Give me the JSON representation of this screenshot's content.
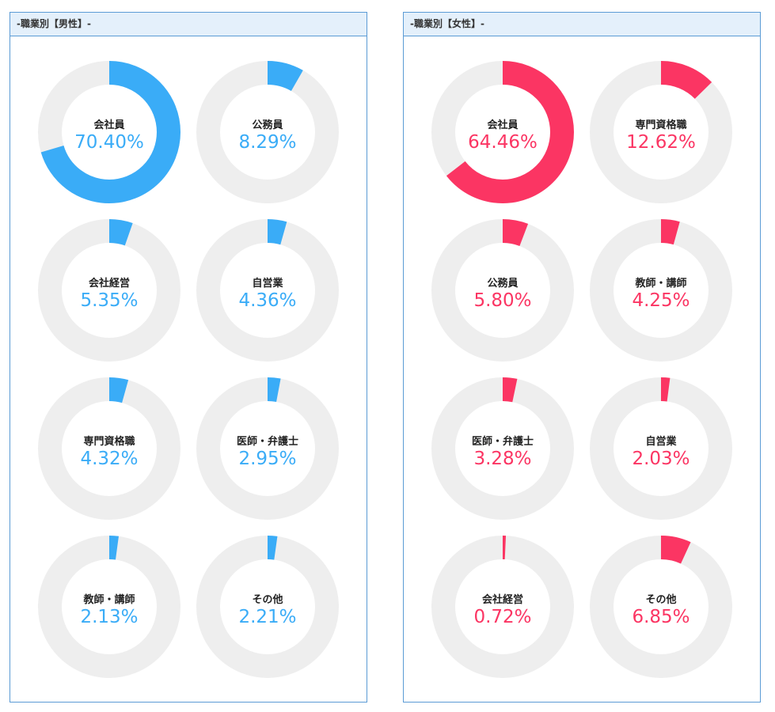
{
  "chart_data": [
    {
      "type": "donut",
      "title": "-職業別【男性】-",
      "color": "#3aacf7",
      "track_color": "#eeeeee",
      "items": [
        {
          "label": "会社員",
          "value": 70.4,
          "display": "70.40%"
        },
        {
          "label": "公務員",
          "value": 8.29,
          "display": "8.29%"
        },
        {
          "label": "会社経営",
          "value": 5.35,
          "display": "5.35%"
        },
        {
          "label": "自営業",
          "value": 4.36,
          "display": "4.36%"
        },
        {
          "label": "専門資格職",
          "value": 4.32,
          "display": "4.32%"
        },
        {
          "label": "医師・弁護士",
          "value": 2.95,
          "display": "2.95%"
        },
        {
          "label": "教師・講師",
          "value": 2.13,
          "display": "2.13%"
        },
        {
          "label": "その他",
          "value": 2.21,
          "display": "2.21%"
        }
      ]
    },
    {
      "type": "donut",
      "title": "-職業別【女性】-",
      "color": "#fb3563",
      "track_color": "#eeeeee",
      "items": [
        {
          "label": "会社員",
          "value": 64.46,
          "display": "64.46%"
        },
        {
          "label": "専門資格職",
          "value": 12.62,
          "display": "12.62%"
        },
        {
          "label": "公務員",
          "value": 5.8,
          "display": "5.80%"
        },
        {
          "label": "教師・講師",
          "value": 4.25,
          "display": "4.25%"
        },
        {
          "label": "医師・弁護士",
          "value": 3.28,
          "display": "3.28%"
        },
        {
          "label": "自営業",
          "value": 2.03,
          "display": "2.03%"
        },
        {
          "label": "会社経営",
          "value": 0.72,
          "display": "0.72%"
        },
        {
          "label": "その他",
          "value": 6.85,
          "display": "6.85%"
        }
      ]
    }
  ]
}
